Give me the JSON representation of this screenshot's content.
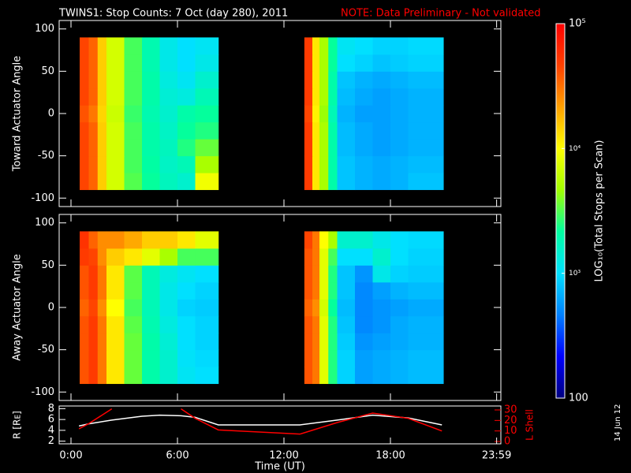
{
  "header": {
    "title": "TWINS1: Stop Counts:  7 Oct (day 280), 2011",
    "note": "NOTE: Data Preliminary - Not validated"
  },
  "stamp": "14 Jun 12",
  "chart_data": [
    {
      "type": "heatmap",
      "ylabel": "Toward Actuator Angle",
      "xlim": [
        -0.667,
        24.222
      ],
      "ylim": [
        -110,
        110
      ],
      "yticks": [
        -100,
        -50,
        0,
        50,
        100
      ],
      "x": [
        0.49,
        1,
        1.5,
        2,
        3,
        4,
        5,
        6,
        7,
        8.3,
        13.15,
        13.6,
        14,
        14.5,
        15,
        16,
        17,
        18,
        19,
        20.98
      ],
      "y": [
        -90,
        -70,
        -50,
        -30,
        -10,
        10,
        30,
        50,
        70,
        90
      ],
      "z": [
        [
          45000,
          35000,
          15000,
          7000,
          3200,
          2200,
          1700,
          1500,
          9000,
          null,
          50000,
          12000,
          5000,
          2000,
          800,
          700,
          650,
          700,
          800
        ],
        [
          45000,
          35000,
          15000,
          7000,
          3000,
          2100,
          1600,
          1800,
          5000,
          null,
          50000,
          12000,
          5000,
          2000,
          800,
          700,
          650,
          700,
          750
        ],
        [
          45000,
          35000,
          15000,
          7000,
          3000,
          2000,
          1700,
          2500,
          3500,
          null,
          50000,
          12000,
          5000,
          2000,
          750,
          650,
          600,
          650,
          700
        ],
        [
          45000,
          35000,
          15000,
          7000,
          3000,
          2000,
          1600,
          2200,
          2500,
          null,
          50000,
          12000,
          5000,
          2000,
          750,
          650,
          600,
          650,
          700
        ],
        [
          40000,
          30000,
          14000,
          6500,
          2800,
          1900,
          1500,
          2000,
          2200,
          null,
          45000,
          11000,
          4500,
          1800,
          700,
          600,
          600,
          650,
          700
        ],
        [
          45000,
          35000,
          15000,
          7000,
          3000,
          2000,
          1400,
          1300,
          1800,
          null,
          50000,
          12000,
          5000,
          2000,
          750,
          650,
          600,
          650,
          700
        ],
        [
          45000,
          35000,
          15000,
          7000,
          3000,
          2000,
          1300,
          1100,
          1500,
          null,
          50000,
          12000,
          5000,
          2000,
          800,
          700,
          650,
          700,
          750
        ],
        [
          45000,
          35000,
          15000,
          7000,
          3000,
          1900,
          1200,
          1000,
          1200,
          null,
          50000,
          12000,
          5000,
          2200,
          1000,
          900,
          800,
          850,
          900
        ],
        [
          45000,
          35000,
          15000,
          7000,
          3000,
          1900,
          1200,
          1000,
          1100,
          null,
          50000,
          12000,
          5000,
          2200,
          1100,
          1000,
          900,
          900,
          950
        ]
      ],
      "zlim": [
        100,
        100000
      ],
      "log_z": true,
      "zticks": [
        100,
        {
          "value": 1000,
          "label": "10³"
        },
        {
          "value": 10000,
          "label": "10⁴"
        },
        {
          "value": 100000,
          "label": "10⁵"
        }
      ],
      "zlabel": "LOG₁₀(Total Stops per Scan)",
      "colormap": [
        "#00007f",
        "#0000ff",
        "#0080ff",
        "#00e0ff",
        "#00ffa0",
        "#a0ff00",
        "#ffff00",
        "#ffa000",
        "#ff4000",
        "#ff0000"
      ]
    },
    {
      "type": "heatmap",
      "ylabel": "Away Actuator Angle",
      "xlim": [
        -0.667,
        24.222
      ],
      "ylim": [
        -110,
        110
      ],
      "yticks": [
        -100,
        -50,
        0,
        50,
        100
      ],
      "x": [
        0.49,
        1,
        1.5,
        2,
        3,
        4,
        5,
        6,
        7,
        8.3,
        13.15,
        13.6,
        14,
        14.5,
        15,
        16,
        17,
        18,
        19,
        20.98
      ],
      "y": [
        -90,
        -70,
        -50,
        -30,
        -10,
        10,
        30,
        50,
        70,
        90
      ],
      "z": [
        [
          40000,
          50000,
          30000,
          12000,
          3500,
          2000,
          1500,
          1100,
          1000,
          null,
          40000,
          30000,
          8000,
          2500,
          900,
          600,
          650,
          700,
          750
        ],
        [
          40000,
          50000,
          30000,
          12000,
          3500,
          2000,
          1500,
          1050,
          950,
          null,
          40000,
          30000,
          8000,
          2500,
          900,
          600,
          650,
          700,
          750
        ],
        [
          40000,
          50000,
          30000,
          12000,
          3500,
          2000,
          1400,
          1000,
          900,
          null,
          40000,
          30000,
          8000,
          2500,
          850,
          550,
          600,
          650,
          700
        ],
        [
          40000,
          50000,
          30000,
          12000,
          3300,
          1900,
          1300,
          1000,
          900,
          null,
          40000,
          30000,
          8000,
          2500,
          800,
          500,
          550,
          650,
          700
        ],
        [
          35000,
          45000,
          25000,
          10000,
          3000,
          1800,
          1200,
          900,
          850,
          null,
          35000,
          25000,
          7000,
          2200,
          750,
          500,
          550,
          600,
          650
        ],
        [
          40000,
          50000,
          30000,
          12000,
          3300,
          1800,
          1200,
          1000,
          900,
          null,
          40000,
          30000,
          8000,
          2500,
          800,
          500,
          600,
          700,
          750
        ],
        [
          40000,
          50000,
          30000,
          12000,
          3300,
          1800,
          1300,
          1100,
          1000,
          null,
          40000,
          30000,
          8000,
          2500,
          800,
          550,
          1200,
          900,
          850
        ],
        [
          50000,
          45000,
          25000,
          15000,
          12000,
          8000,
          5000,
          3000,
          3000,
          null,
          40000,
          30000,
          8000,
          3000,
          1000,
          1000,
          1500,
          1000,
          900
        ],
        [
          55000,
          35000,
          25000,
          25000,
          20000,
          15000,
          15000,
          12000,
          8000,
          null,
          45000,
          30000,
          10000,
          5000,
          1500,
          1500,
          1200,
          1000,
          950
        ]
      ]
    },
    {
      "type": "line",
      "ylabel": "R [Rᴇ]",
      "y2label": "L Shell",
      "xlabel": "Time (UT)",
      "xlim": [
        -0.667,
        24.222
      ],
      "xticks": [
        {
          "value": 0,
          "label": "0:00"
        },
        {
          "value": 6,
          "label": "6:00"
        },
        {
          "value": 12,
          "label": "12:00"
        },
        {
          "value": 18,
          "label": "18:00"
        },
        {
          "value": 23.983,
          "label": "23:59"
        }
      ],
      "ylim": [
        1.5,
        8.5
      ],
      "yticks": [
        2,
        4,
        6,
        8
      ],
      "y2lim": [
        -2.25,
        33.75
      ],
      "y2ticks": [
        0,
        10,
        20,
        30
      ],
      "y2color": "#ff0000",
      "x": [
        0.45,
        1,
        2.3,
        4,
        5,
        6.2,
        7,
        8.3,
        12.9,
        15,
        17,
        19,
        20.9
      ],
      "series": [
        {
          "color": "#ffffff",
          "values": [
            4.8,
            5.2,
            5.9,
            6.6,
            6.8,
            6.7,
            6.4,
            5.0,
            5.0,
            5.9,
            6.8,
            6.3,
            5.0
          ]
        },
        {
          "color": "#ff0000",
          "axis": "y2",
          "values": [
            12,
            17,
            31,
            null,
            null,
            31,
            22,
            11,
            7,
            18,
            27,
            22,
            10
          ]
        }
      ]
    }
  ]
}
